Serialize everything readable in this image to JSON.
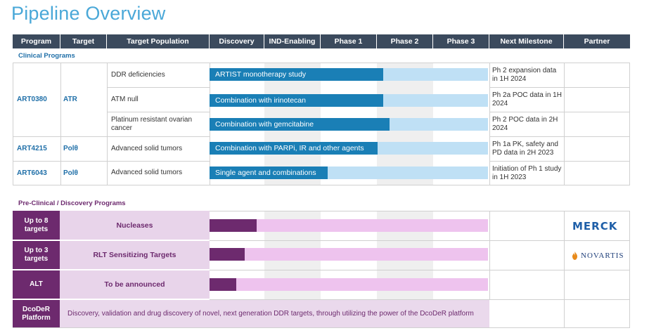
{
  "page": {
    "title": "Pipeline Overview"
  },
  "headers": [
    "Program",
    "Target",
    "Target Population",
    "Discovery",
    "IND-Enabling",
    "Phase 1",
    "Phase 2",
    "Phase 3",
    "Next Milestone",
    "Partner"
  ],
  "clinical": {
    "label": "Clinical Programs",
    "programs": [
      {
        "program": "ART0380",
        "target": "ATR"
      },
      {
        "program": "ART4215",
        "target": "Polθ"
      },
      {
        "program": "ART6043",
        "target": "Polθ"
      }
    ],
    "rows": [
      {
        "population": "DDR deficiencies",
        "bar_label": "ARTIST monotherapy study",
        "progress": "Phase 2",
        "milestone": "Ph 2 expansion data in 1H 2024"
      },
      {
        "population": "ATM null",
        "bar_label": "Combination with irinotecan",
        "progress": "Phase 2",
        "milestone": "Ph 2a POC data in 1H 2024"
      },
      {
        "population": "Platinum resistant ovarian cancer",
        "bar_label": "Combination with gemcitabine",
        "progress": "Phase 2",
        "milestone": "Ph 2 POC data in 2H 2024"
      },
      {
        "population": "Advanced solid tumors",
        "bar_label": "Combination with PARPi, IR and other agents",
        "progress": "Phase 1/2",
        "milestone": "Ph 1a PK, safety and PD data in 2H 2023"
      },
      {
        "population": "Advanced solid tumors",
        "bar_label": "Single agent and combinations",
        "progress": "Phase 1",
        "milestone": "Initiation of Ph 1 study in 1H 2023"
      }
    ]
  },
  "preclinical": {
    "label": "Pre-Clinical / Discovery Programs",
    "rows": [
      {
        "program": "Up to 8 targets",
        "population": "Nucleases",
        "progress": "Discovery",
        "partner": "MERCK"
      },
      {
        "program": "Up to 3 targets",
        "population": "RLT Sensitizing Targets",
        "progress": "Discovery",
        "partner": "NOVARTIS"
      },
      {
        "program": "ALT",
        "population": "To be announced",
        "progress": "Discovery",
        "partner": ""
      }
    ],
    "dcoder": {
      "program": "DcoDeR Platform",
      "text": "Discovery, validation and drug discovery of novel, next generation DDR targets, through utilizing the power of the DcoDeR platform"
    }
  },
  "colors": {
    "clinical_bar": "#1a7fb6",
    "clinical_track": "#bfe0f5",
    "preclinical_bar": "#6d2a6e",
    "preclinical_track": "#eec3ee",
    "header": "#3b4a5d"
  },
  "icons": {
    "merck": "merck-logo",
    "novartis": "novartis-logo"
  }
}
